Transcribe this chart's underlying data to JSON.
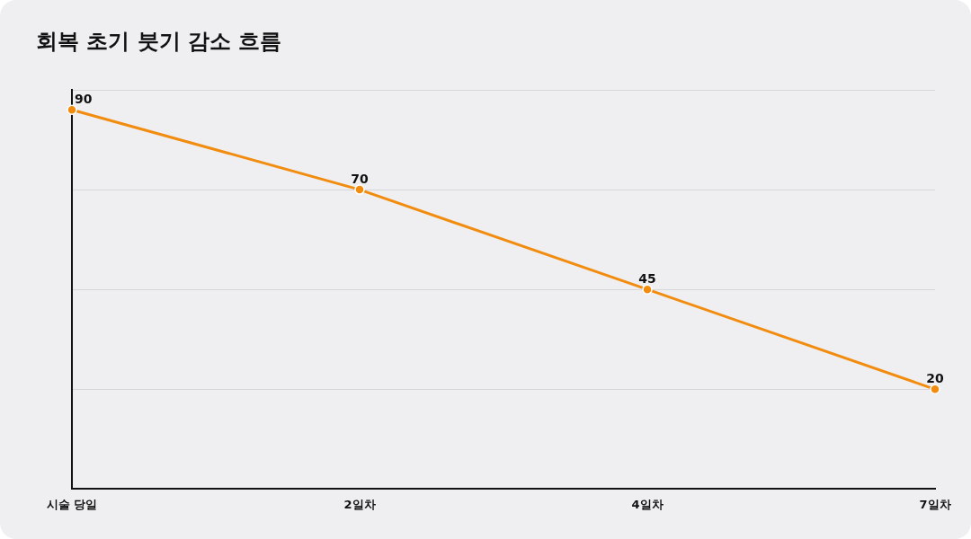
{
  "chart_data": {
    "type": "line",
    "title": "회복 초기 붓기 감소 흐름",
    "categories": [
      "시술 당일",
      "2일차",
      "4일차",
      "7일차"
    ],
    "series": [
      {
        "color": "#f28c0f",
        "values": [
          90,
          70,
          45,
          20
        ]
      }
    ],
    "ylim": [
      -5,
      95
    ],
    "yticks": [
      {
        "value": 20,
        "label": null
      },
      {
        "value": 45,
        "label": null
      },
      {
        "value": 70,
        "label": null
      },
      {
        "value": 95,
        "label": null
      }
    ],
    "tick_labels": "x",
    "grid": "y",
    "legend": false,
    "marker": "circle",
    "line_style": "solid",
    "data_labels": true
  }
}
